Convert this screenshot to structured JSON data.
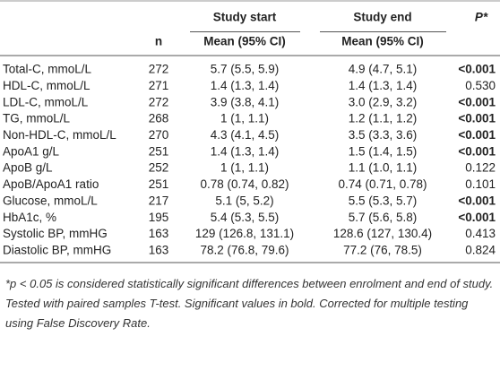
{
  "table": {
    "header": {
      "group_start": "Study start",
      "group_end": "Study end",
      "p": "P*",
      "n": "n",
      "mean_start": "Mean (95% CI)",
      "mean_end": "Mean (95% CI)"
    },
    "rows": [
      {
        "label": "Total-C, mmoL/L",
        "n": 272,
        "start": "5.7 (5.5, 5.9)",
        "end": "4.9 (4.7, 5.1)",
        "p": "<0.001",
        "significant": true
      },
      {
        "label": "HDL-C, mmoL/L",
        "n": 271,
        "start": "1.4 (1.3, 1.4)",
        "end": "1.4 (1.3, 1.4)",
        "p": "0.530",
        "significant": false
      },
      {
        "label": "LDL-C, mmoL/L",
        "n": 272,
        "start": "3.9 (3.8, 4.1)",
        "end": "3.0 (2.9, 3.2)",
        "p": "<0.001",
        "significant": true
      },
      {
        "label": "TG, mmoL/L",
        "n": 268,
        "start": "1 (1, 1.1)",
        "end": "1.2 (1.1, 1.2)",
        "p": "<0.001",
        "significant": true
      },
      {
        "label": "Non-HDL-C, mmoL/L",
        "n": 270,
        "start": "4.3 (4.1, 4.5)",
        "end": "3.5 (3.3, 3.6)",
        "p": "<0.001",
        "significant": true
      },
      {
        "label": "ApoA1 g/L",
        "n": 251,
        "start": "1.4 (1.3, 1.4)",
        "end": "1.5 (1.4, 1.5)",
        "p": "<0.001",
        "significant": true
      },
      {
        "label": "ApoB g/L",
        "n": 252,
        "start": "1 (1, 1.1)",
        "end": "1.1 (1.0, 1.1)",
        "p": "0.122",
        "significant": false
      },
      {
        "label": "ApoB/ApoA1 ratio",
        "n": 251,
        "start": "0.78 (0.74, 0.82)",
        "end": "0.74 (0.71, 0.78)",
        "p": "0.101",
        "significant": false
      },
      {
        "label": "Glucose, mmoL/L",
        "n": 217,
        "start": "5.1 (5, 5.2)",
        "end": "5.5 (5.3, 5.7)",
        "p": "<0.001",
        "significant": true
      },
      {
        "label": "HbA1c, %",
        "n": 195,
        "start": "5.4 (5.3, 5.5)",
        "end": "5.7 (5.6, 5.8)",
        "p": "<0.001",
        "significant": true
      },
      {
        "label": "Systolic BP, mmHG",
        "n": 163,
        "start": "129 (126.8, 131.1)",
        "end": "128.6 (127, 130.4)",
        "p": "0.413",
        "significant": false
      },
      {
        "label": "Diastolic BP, mmHG",
        "n": 163,
        "start": "78.2 (76.8, 79.6)",
        "end": "77.2 (76, 78.5)",
        "p": "0.824",
        "significant": false
      }
    ],
    "footnote": "*p < 0.05 is considered statistically significant differences between enrolment and end of study. Tested with paired samples T-test. Significant values in bold. Corrected for multiple testing using False Discovery Rate."
  }
}
